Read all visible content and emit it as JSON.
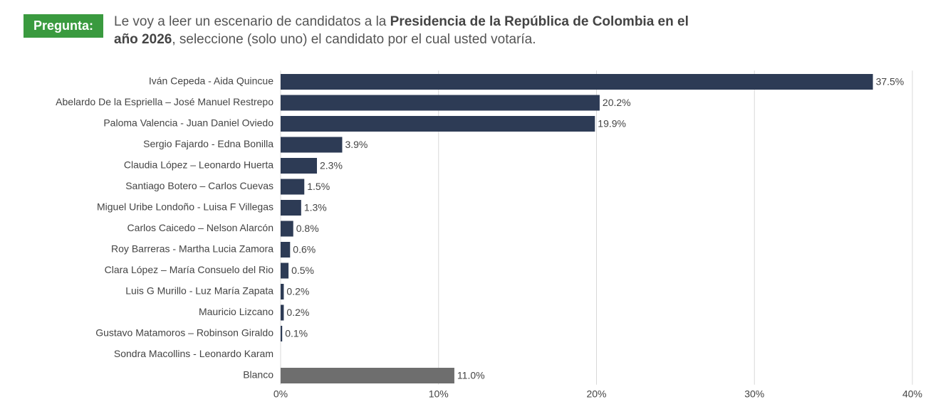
{
  "chart_data": {
    "type": "bar",
    "orientation": "horizontal",
    "label": "Pregunta:",
    "question": [
      "Le voy a leer un escenario de candidatos a la ",
      "Presidencia de la República de Colombia en el año 2026",
      ", seleccione (solo uno) el candidato por el cual usted votaría."
    ],
    "categories": [
      "Iván Cepeda - Aida Quincue",
      "Abelardo De la Espriella – José Manuel Restrepo",
      "Paloma Valencia - Juan Daniel Oviedo",
      "Sergio Fajardo - Edna Bonilla",
      "Claudia López – Leonardo Huerta",
      "Santiago Botero – Carlos Cuevas",
      "Miguel Uribe Londoño - Luisa F Villegas",
      "Carlos Caicedo – Nelson Alarcón",
      "Roy Barreras - Martha Lucia Zamora",
      "Clara López – María Consuelo del Rio",
      "Luis G Murillo - Luz María Zapata",
      "Mauricio Lizcano",
      "Gustavo Matamoros – Robinson Giraldo",
      "Sondra Macollins - Leonardo Karam",
      "Blanco"
    ],
    "values": [
      37.5,
      20.2,
      19.9,
      3.9,
      2.3,
      1.5,
      1.3,
      0.8,
      0.6,
      0.5,
      0.2,
      0.2,
      0.1,
      null,
      11.0
    ],
    "value_labels": [
      "37.5%",
      "20.2%",
      "19.9%",
      "3.9%",
      "2.3%",
      "1.5%",
      "1.3%",
      "0.8%",
      "0.6%",
      "0.5%",
      "0.2%",
      "0.2%",
      "0.1%",
      null,
      "11.0%"
    ],
    "colors": [
      "#2d3b55",
      "#2d3b55",
      "#2d3b55",
      "#2d3b55",
      "#2d3b55",
      "#2d3b55",
      "#2d3b55",
      "#2d3b55",
      "#2d3b55",
      "#2d3b55",
      "#2d3b55",
      "#2d3b55",
      "#2d3b55",
      "#2d3b55",
      "#6e6e6e"
    ],
    "xlim": [
      0,
      40
    ],
    "xticks": [
      {
        "value": 0,
        "label": "0%"
      },
      {
        "value": 10,
        "label": "10%"
      },
      {
        "value": 20,
        "label": "20%"
      },
      {
        "value": 30,
        "label": "30%"
      },
      {
        "value": 40,
        "label": "40%"
      }
    ],
    "grid": true
  }
}
